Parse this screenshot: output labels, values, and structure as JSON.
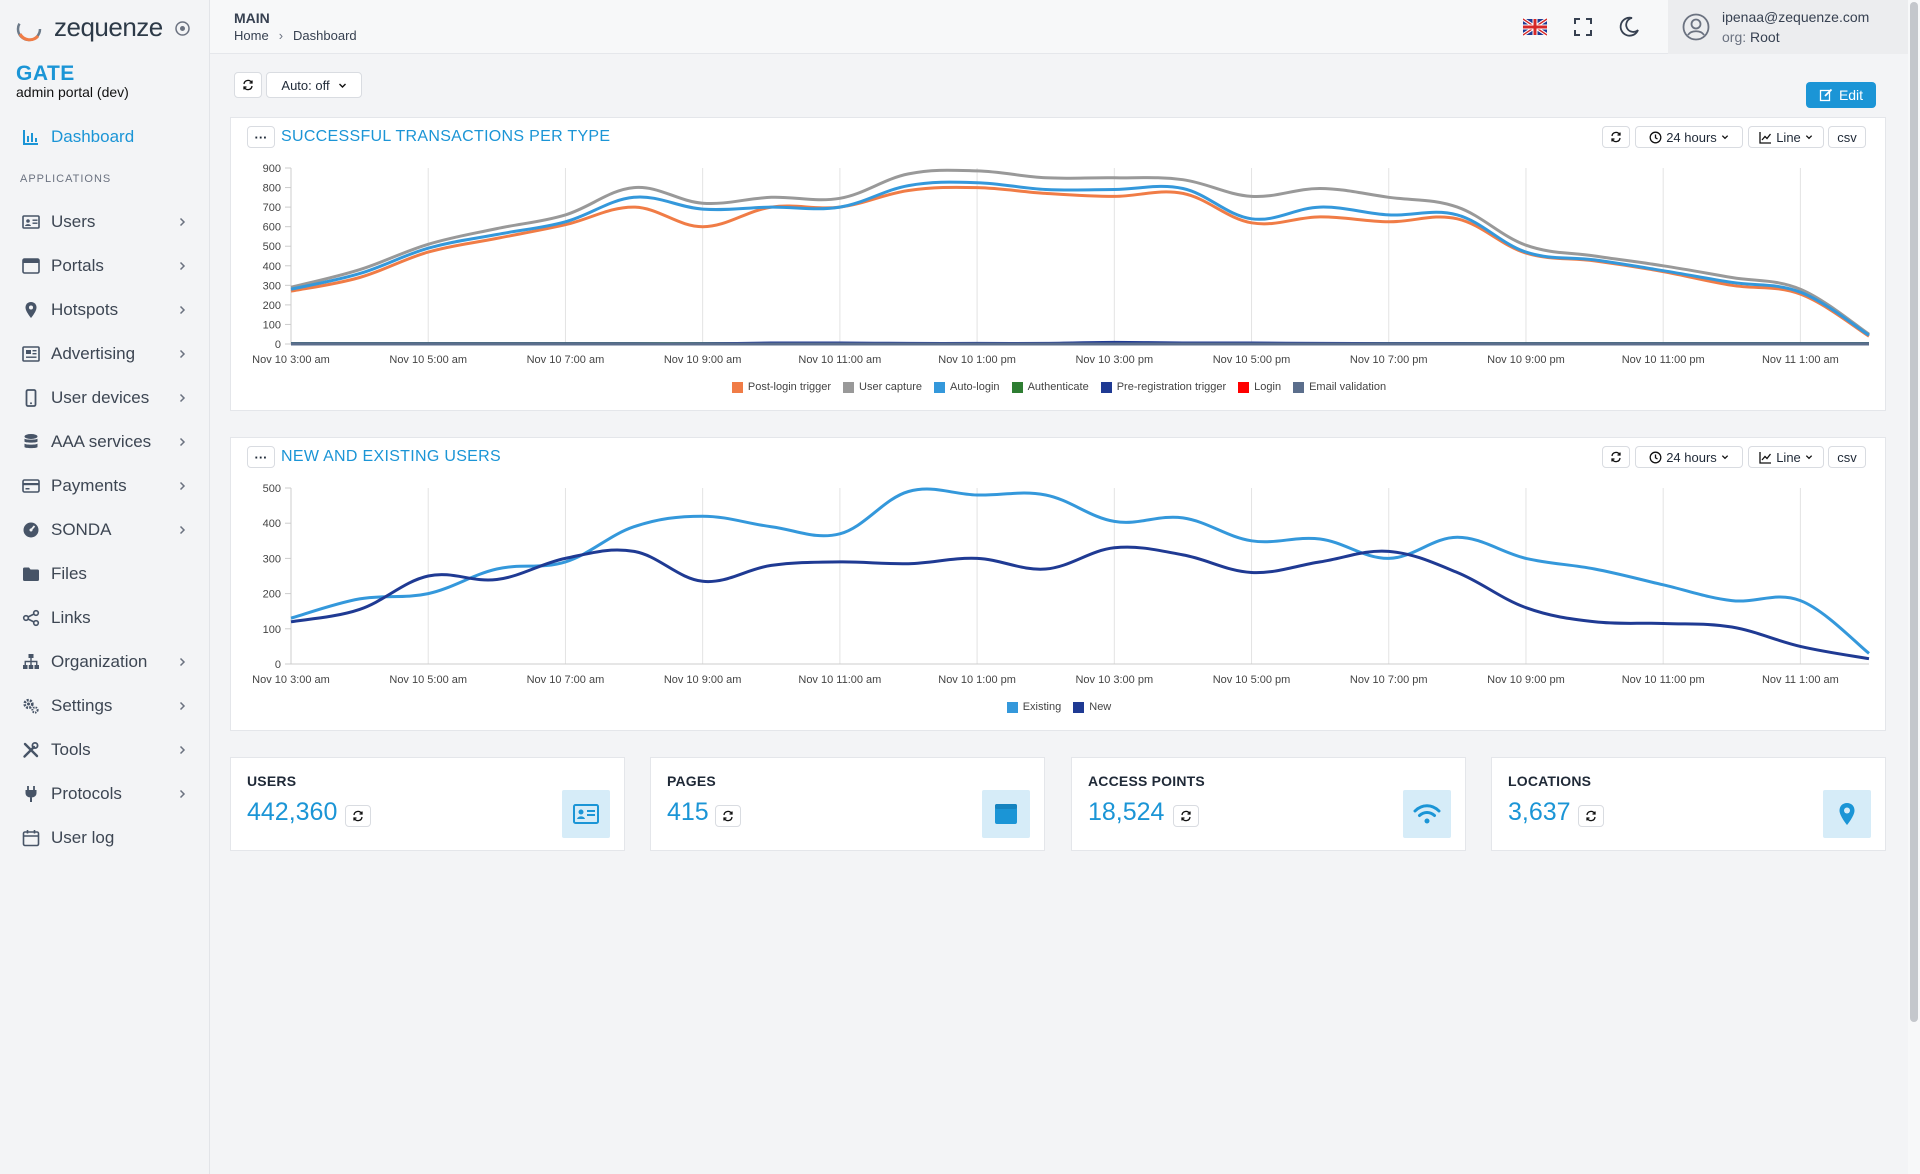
{
  "app": {
    "logo_text": "zequenze",
    "brand_title": "GATE",
    "brand_sub": "admin portal (dev)"
  },
  "sidebar": {
    "section_label": "APPLICATIONS",
    "dashboard": {
      "label": "Dashboard",
      "icon": "bar-chart-icon"
    },
    "items": [
      {
        "label": "Users",
        "icon": "id-card-icon",
        "has_children": true
      },
      {
        "label": "Portals",
        "icon": "browser-window-icon",
        "has_children": true
      },
      {
        "label": "Hotspots",
        "icon": "map-pin-icon",
        "has_children": true
      },
      {
        "label": "Advertising",
        "icon": "newspaper-icon",
        "has_children": true
      },
      {
        "label": "User devices",
        "icon": "mobile-phone-icon",
        "has_children": true
      },
      {
        "label": "AAA services",
        "icon": "database-icon",
        "has_children": true
      },
      {
        "label": "Payments",
        "icon": "credit-card-icon",
        "has_children": true
      },
      {
        "label": "SONDA",
        "icon": "gauge-icon",
        "has_children": true
      },
      {
        "label": "Files",
        "icon": "folder-icon",
        "has_children": false
      },
      {
        "label": "Links",
        "icon": "share-nodes-icon",
        "has_children": false
      },
      {
        "label": "Organization",
        "icon": "sitemap-icon",
        "has_children": true
      },
      {
        "label": "Settings",
        "icon": "gears-icon",
        "has_children": true
      },
      {
        "label": "Tools",
        "icon": "tools-icon",
        "has_children": true
      },
      {
        "label": "Protocols",
        "icon": "plug-icon",
        "has_children": true
      },
      {
        "label": "User log",
        "icon": "calendar-icon",
        "has_children": false
      }
    ]
  },
  "header": {
    "title": "MAIN",
    "breadcrumb": [
      "Home",
      "Dashboard"
    ],
    "user_email": "ipenaa@zequenze.com",
    "org_key": "org:",
    "org_value": "Root"
  },
  "toolbar": {
    "auto_label": "Auto: off",
    "edit_label": "Edit"
  },
  "colors": {
    "accent": "#1b95d6",
    "post_login": "#f07c46",
    "user_capture": "#999999",
    "auto_login": "#3498db",
    "authenticate": "#2e7d32",
    "pre_registration": "#1f3a93",
    "login": "#ff0000",
    "email_validation": "#5b6e8c"
  },
  "panels": [
    {
      "title": "SUCCESSFUL TRANSACTIONS PER TYPE",
      "range_label": "24 hours",
      "type_label": "Line",
      "csv_label": "csv"
    },
    {
      "title": "NEW AND EXISTING USERS",
      "range_label": "24 hours",
      "type_label": "Line",
      "csv_label": "csv"
    }
  ],
  "chart_data": [
    {
      "type": "line",
      "title": "SUCCESSFUL TRANSACTIONS PER TYPE",
      "ylim": [
        0,
        900
      ],
      "yticks": [
        0,
        100,
        200,
        300,
        400,
        500,
        600,
        700,
        800,
        900
      ],
      "x_tick_labels": [
        "Nov 10 3:00 am",
        "Nov 10 5:00 am",
        "Nov 10 7:00 am",
        "Nov 10 9:00 am",
        "Nov 10 11:00 am",
        "Nov 10 1:00 pm",
        "Nov 10 3:00 pm",
        "Nov 10 5:00 pm",
        "Nov 10 7:00 pm",
        "Nov 10 9:00 pm",
        "Nov 10 11:00 pm",
        "Nov 11 1:00 am"
      ],
      "x_hours": [
        0,
        1,
        2,
        3,
        4,
        5,
        6,
        7,
        8,
        9,
        10,
        11,
        12,
        13,
        14,
        15,
        16,
        17,
        18,
        19,
        20,
        21,
        22,
        23
      ],
      "grid": true,
      "legend_position": "bottom",
      "series": [
        {
          "name": "Post-login trigger",
          "color": "#f07c46",
          "values": [
            270,
            340,
            470,
            540,
            610,
            700,
            600,
            700,
            700,
            785,
            800,
            770,
            755,
            770,
            620,
            650,
            625,
            640,
            465,
            425,
            370,
            300,
            255,
            40
          ]
        },
        {
          "name": "User capture",
          "color": "#999999",
          "values": [
            290,
            380,
            510,
            590,
            660,
            800,
            720,
            750,
            745,
            870,
            885,
            850,
            850,
            840,
            755,
            795,
            750,
            700,
            505,
            450,
            400,
            340,
            280,
            50
          ]
        },
        {
          "name": "Auto-login",
          "color": "#3498db",
          "values": [
            280,
            360,
            490,
            560,
            625,
            750,
            690,
            700,
            700,
            810,
            825,
            790,
            790,
            795,
            640,
            700,
            660,
            660,
            470,
            430,
            375,
            315,
            265,
            45
          ]
        },
        {
          "name": "Authenticate",
          "color": "#2e7d32",
          "values": [
            2,
            2,
            2,
            2,
            2,
            2,
            2,
            2,
            2,
            2,
            2,
            2,
            2,
            2,
            2,
            2,
            2,
            2,
            2,
            2,
            2,
            2,
            2,
            2
          ]
        },
        {
          "name": "Pre-registration trigger",
          "color": "#1f3a93",
          "values": [
            1,
            1,
            1,
            1,
            1,
            1,
            1,
            5,
            5,
            3,
            3,
            3,
            8,
            5,
            5,
            3,
            2,
            2,
            1,
            1,
            1,
            1,
            1,
            1
          ]
        },
        {
          "name": "Login",
          "color": "#ff0000",
          "values": [
            0,
            0,
            0,
            0,
            0,
            0,
            0,
            0,
            0,
            0,
            0,
            0,
            0,
            0,
            0,
            0,
            0,
            0,
            0,
            0,
            0,
            0,
            0,
            0
          ]
        },
        {
          "name": "Email validation",
          "color": "#5b6e8c",
          "values": [
            0,
            0,
            0,
            0,
            0,
            0,
            0,
            0,
            0,
            0,
            0,
            0,
            0,
            0,
            0,
            0,
            0,
            0,
            0,
            0,
            0,
            0,
            0,
            0
          ]
        }
      ]
    },
    {
      "type": "line",
      "title": "NEW AND EXISTING USERS",
      "ylim": [
        0,
        500
      ],
      "yticks": [
        0,
        100,
        200,
        300,
        400,
        500
      ],
      "x_tick_labels": [
        "Nov 10 3:00 am",
        "Nov 10 5:00 am",
        "Nov 10 7:00 am",
        "Nov 10 9:00 am",
        "Nov 10 11:00 am",
        "Nov 10 1:00 pm",
        "Nov 10 3:00 pm",
        "Nov 10 5:00 pm",
        "Nov 10 7:00 pm",
        "Nov 10 9:00 pm",
        "Nov 10 11:00 pm",
        "Nov 11 1:00 am"
      ],
      "x_hours": [
        0,
        1,
        2,
        3,
        4,
        5,
        6,
        7,
        8,
        9,
        10,
        11,
        12,
        13,
        14,
        15,
        16,
        17,
        18,
        19,
        20,
        21,
        22,
        23
      ],
      "grid": true,
      "legend_position": "bottom",
      "series": [
        {
          "name": "Existing",
          "color": "#3498db",
          "values": [
            130,
            185,
            200,
            270,
            290,
            390,
            420,
            390,
            370,
            490,
            480,
            480,
            405,
            415,
            350,
            355,
            300,
            360,
            300,
            270,
            225,
            180,
            180,
            30
          ]
        },
        {
          "name": "New",
          "color": "#1f3a93",
          "values": [
            120,
            155,
            250,
            240,
            300,
            320,
            235,
            280,
            290,
            285,
            300,
            270,
            330,
            310,
            260,
            290,
            320,
            260,
            160,
            120,
            115,
            105,
            50,
            15
          ]
        }
      ]
    }
  ],
  "stats": [
    {
      "title": "USERS",
      "value": "442,360",
      "icon": "id-card-icon"
    },
    {
      "title": "PAGES",
      "value": "415",
      "icon": "browser-window-icon"
    },
    {
      "title": "ACCESS POINTS",
      "value": "18,524",
      "icon": "wifi-icon"
    },
    {
      "title": "LOCATIONS",
      "value": "3,637",
      "icon": "map-pin-icon"
    }
  ]
}
